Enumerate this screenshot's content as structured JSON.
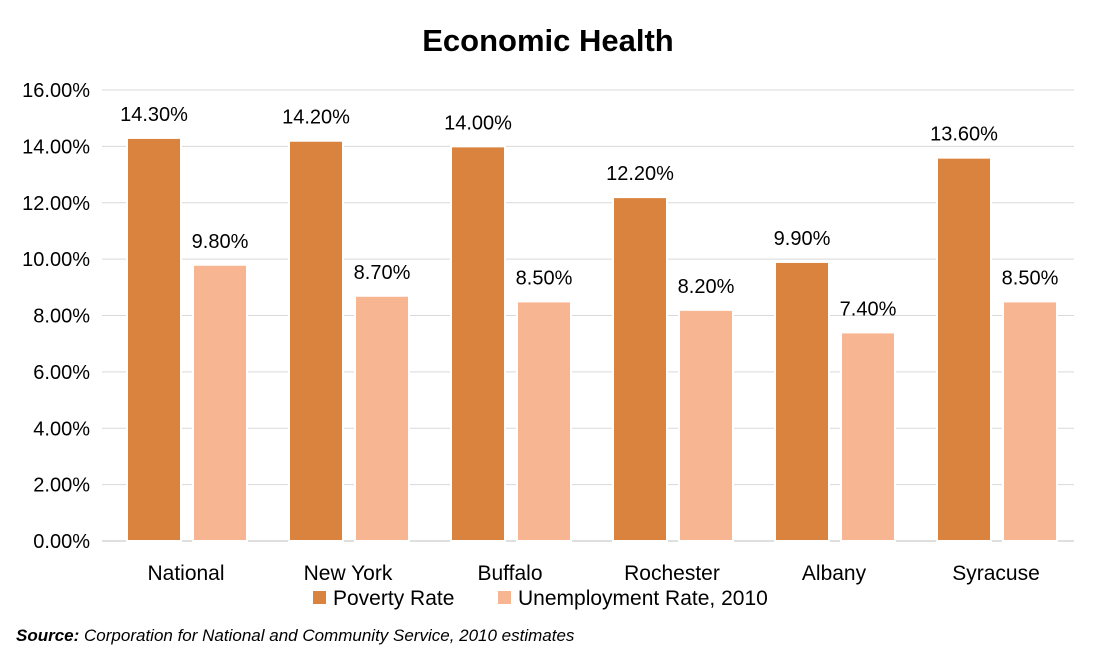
{
  "chart_data": {
    "type": "bar",
    "title": "Economic Health",
    "categories": [
      "National",
      "New York",
      "Buffalo",
      "Rochester",
      "Albany",
      "Syracuse"
    ],
    "series": [
      {
        "name": "Poverty Rate",
        "color": "#d9833f",
        "values": [
          14.3,
          14.2,
          14.0,
          12.2,
          9.9,
          13.6
        ],
        "labels": [
          "14.30%",
          "14.20%",
          "14.00%",
          "12.20%",
          "9.90%",
          "13.60%"
        ]
      },
      {
        "name": "Unemployment Rate, 2010",
        "color": "#f8b592",
        "values": [
          9.8,
          8.7,
          8.5,
          8.2,
          7.4,
          8.5
        ],
        "labels": [
          "9.80%",
          "8.70%",
          "8.50%",
          "8.20%",
          "7.40%",
          "8.50%"
        ]
      }
    ],
    "ylim": [
      0,
      16
    ],
    "yticks": [
      0,
      2,
      4,
      6,
      8,
      10,
      12,
      14,
      16
    ],
    "ytick_labels": [
      "0.00%",
      "2.00%",
      "4.00%",
      "6.00%",
      "8.00%",
      "10.00%",
      "12.00%",
      "14.00%",
      "16.00%"
    ],
    "grid": true,
    "legend_position": "bottom",
    "xlabel": "",
    "ylabel": ""
  },
  "source": {
    "label": "Source:",
    "text": "Corporation for National and Community Service, 2010 estimates"
  }
}
